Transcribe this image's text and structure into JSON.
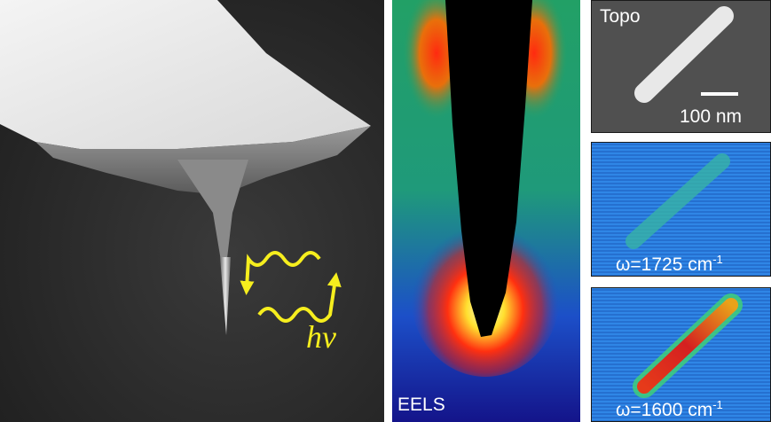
{
  "panels": {
    "sem": {
      "label": "hv",
      "photon_color": "#f6ee1e"
    },
    "eels": {
      "label": "EELS"
    },
    "topo": {
      "label": "Topo",
      "scale_bar": "100 nm"
    },
    "map1": {
      "label_prefix": "ω=1725 cm",
      "label_exp": "-1"
    },
    "map2": {
      "label_prefix": "ω=1600 cm",
      "label_exp": "-1"
    }
  }
}
